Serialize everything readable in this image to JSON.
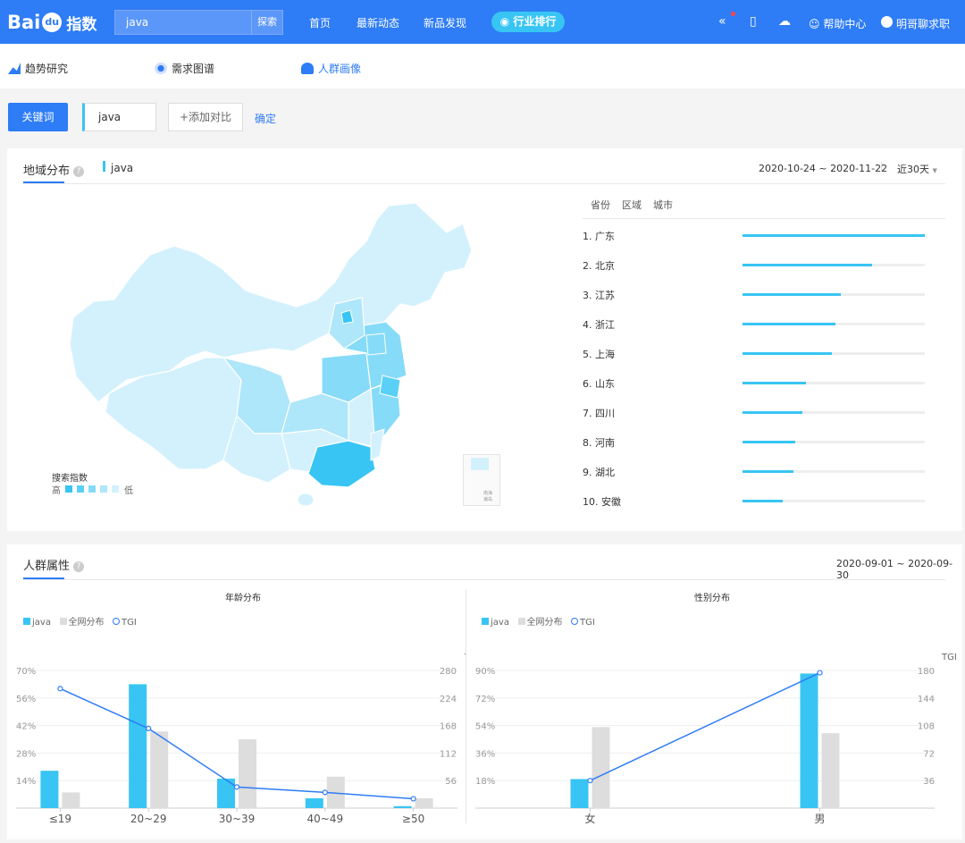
{
  "header": {
    "logo_text": "Bai",
    "logo_sub": "指数",
    "search_value": "java",
    "search_button": "探索",
    "nav": [
      "首页",
      "最新动态",
      "新品发现"
    ],
    "pill": "行业排行",
    "help": "帮助中心",
    "user": "明哥聊求职"
  },
  "subnav": {
    "tabs": [
      "趋势研究",
      "需求图谱",
      "人群画像"
    ],
    "accent": "#2e7cf6"
  },
  "keyword": {
    "label": "关键词",
    "value": "java",
    "add_compare": "+添加对比",
    "confirm": "确定"
  },
  "region": {
    "title": "地域分布",
    "series_label": "java",
    "date_range": "2020-10-24 ~ 2020-11-22",
    "period": "近30天",
    "tabs": [
      "省份",
      "区域",
      "城市"
    ],
    "legend_title": "搜索指数",
    "legend_high": "高",
    "legend_low": "低",
    "legend_colors": [
      "#38c5f4",
      "#5bd0f6",
      "#86dbf8",
      "#aee6fa",
      "#d3f1fc"
    ],
    "ranks": [
      {
        "label": "1.  广东",
        "value": 100
      },
      {
        "label": "2.  北京",
        "value": 71
      },
      {
        "label": "3.  江苏",
        "value": 54
      },
      {
        "label": "4.  浙江",
        "value": 51
      },
      {
        "label": "5.  上海",
        "value": 49
      },
      {
        "label": "6.  山东",
        "value": 35
      },
      {
        "label": "7.  四川",
        "value": 33
      },
      {
        "label": "8.  河南",
        "value": 29
      },
      {
        "label": "9.  湖北",
        "value": 28
      },
      {
        "label": "10. 安徽",
        "value": 22
      }
    ],
    "inset_label": "南海诸岛"
  },
  "crowd": {
    "title": "人群属性",
    "date_range": "2020-09-01 ~ 2020-09-30",
    "legend": {
      "series": "java",
      "all": "全网分布",
      "tgi": "TGI"
    },
    "colors": {
      "series": "#38c5f4",
      "all": "#dddddd",
      "tgi": "#2e7cf6"
    }
  },
  "chart_data": [
    {
      "type": "bar",
      "title": "年龄分布",
      "categories": [
        "≤19",
        "20~29",
        "30~39",
        "40~49",
        "≥50"
      ],
      "series": [
        {
          "name": "java",
          "values": [
            19,
            63,
            15,
            5,
            1
          ]
        },
        {
          "name": "全网分布",
          "values": [
            8,
            39,
            35,
            16,
            5
          ]
        }
      ],
      "tgi": {
        "name": "TGI",
        "values": [
          243,
          162,
          43,
          32,
          19
        ]
      },
      "ylim": [
        0,
        70
      ],
      "yticks": [
        "70%",
        "56%",
        "42%",
        "28%",
        "14%"
      ],
      "y2label": "TGI",
      "y2lim": [
        0,
        280
      ],
      "y2ticks": [
        "280",
        "224",
        "168",
        "112",
        "56"
      ]
    },
    {
      "type": "bar",
      "title": "性别分布",
      "categories": [
        "女",
        "男"
      ],
      "series": [
        {
          "name": "java",
          "values": [
            19,
            88
          ]
        },
        {
          "name": "全网分布",
          "values": [
            53,
            49
          ]
        }
      ],
      "tgi": {
        "name": "TGI",
        "values": [
          36,
          177
        ]
      },
      "ylim": [
        0,
        90
      ],
      "yticks": [
        "90%",
        "72%",
        "54%",
        "36%",
        "18%"
      ],
      "y2label": "TGI",
      "y2lim": [
        0,
        180
      ],
      "y2ticks": [
        "180",
        "144",
        "108",
        "72",
        "36"
      ]
    }
  ]
}
